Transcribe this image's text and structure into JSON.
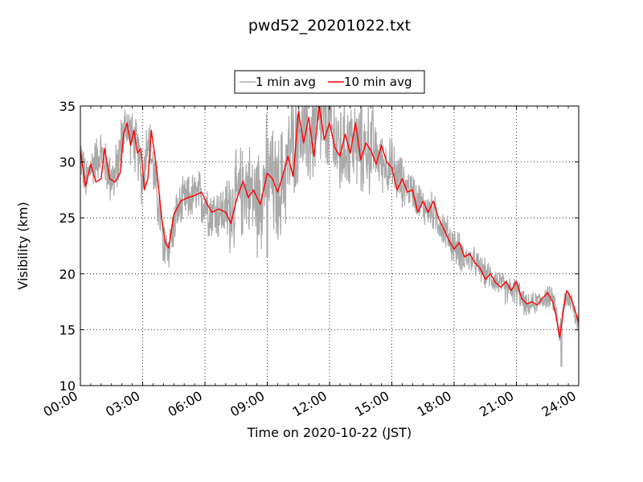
{
  "chart_data": {
    "type": "line",
    "title": "pwd52_20201022.txt",
    "xlabel": "Time on 2020-10-22 (JST)",
    "ylabel": "Visibility (km)",
    "xlim": [
      "00:00",
      "24:00"
    ],
    "ylim": [
      10,
      35
    ],
    "x_ticks": [
      "00:00",
      "03:00",
      "06:00",
      "09:00",
      "12:00",
      "15:00",
      "18:00",
      "21:00",
      "24:00"
    ],
    "y_ticks": [
      "10",
      "15",
      "20",
      "25",
      "30",
      "35"
    ],
    "grid": true,
    "legend_position": "top-center, above plot",
    "series": [
      {
        "name": "1 min avg",
        "color": "#a9a9a9",
        "noise_amplitude_km": [
          2.5,
          3,
          3,
          2.5,
          3,
          5,
          6,
          6,
          6,
          5,
          3,
          2,
          2,
          1.5,
          1.5,
          1.2,
          1.2
        ],
        "min_values": [
          {
            "x": "04:00",
            "y": 21.2
          },
          {
            "x": "09:00",
            "y": 21.5
          },
          {
            "x": "23:10",
            "y": 11.7
          }
        ],
        "points": [
          {
            "x": "00:00",
            "y": 31
          },
          {
            "x": "00:15",
            "y": 28
          },
          {
            "x": "00:30",
            "y": 29.5
          },
          {
            "x": "01:00",
            "y": 31
          },
          {
            "x": "01:20",
            "y": 29
          },
          {
            "x": "01:40",
            "y": 28.5
          },
          {
            "x": "02:00",
            "y": 32
          },
          {
            "x": "02:15",
            "y": 33.5
          },
          {
            "x": "02:30",
            "y": 32
          },
          {
            "x": "02:45",
            "y": 31
          },
          {
            "x": "03:00",
            "y": 28
          },
          {
            "x": "03:15",
            "y": 32.5
          },
          {
            "x": "03:35",
            "y": 28.5
          },
          {
            "x": "04:00",
            "y": 23
          },
          {
            "x": "04:15",
            "y": 22.3
          },
          {
            "x": "04:40",
            "y": 25.5
          },
          {
            "x": "05:00",
            "y": 26.5
          },
          {
            "x": "05:30",
            "y": 27
          },
          {
            "x": "06:00",
            "y": 26.5
          },
          {
            "x": "06:20",
            "y": 25.5
          },
          {
            "x": "07:00",
            "y": 25.5
          },
          {
            "x": "07:30",
            "y": 26.5
          },
          {
            "x": "08:00",
            "y": 28
          },
          {
            "x": "08:30",
            "y": 26.5
          },
          {
            "x": "09:00",
            "y": 29
          },
          {
            "x": "09:30",
            "y": 27
          },
          {
            "x": "10:00",
            "y": 30
          },
          {
            "x": "10:30",
            "y": 33.5
          },
          {
            "x": "11:00",
            "y": 32
          },
          {
            "x": "11:30",
            "y": 34
          },
          {
            "x": "12:00",
            "y": 33
          },
          {
            "x": "12:30",
            "y": 31
          },
          {
            "x": "13:00",
            "y": 32
          },
          {
            "x": "13:30",
            "y": 31
          },
          {
            "x": "14:00",
            "y": 31.5
          },
          {
            "x": "14:30",
            "y": 30
          },
          {
            "x": "15:00",
            "y": 29.5
          },
          {
            "x": "15:30",
            "y": 28
          },
          {
            "x": "16:00",
            "y": 27.5
          },
          {
            "x": "16:30",
            "y": 26
          },
          {
            "x": "17:00",
            "y": 25.5
          },
          {
            "x": "17:30",
            "y": 24
          },
          {
            "x": "18:00",
            "y": 22.5
          },
          {
            "x": "18:30",
            "y": 21.5
          },
          {
            "x": "19:00",
            "y": 21
          },
          {
            "x": "19:30",
            "y": 20
          },
          {
            "x": "20:00",
            "y": 19.5
          },
          {
            "x": "20:30",
            "y": 18.5
          },
          {
            "x": "21:00",
            "y": 18.5
          },
          {
            "x": "21:30",
            "y": 17
          },
          {
            "x": "22:00",
            "y": 17.5
          },
          {
            "x": "22:30",
            "y": 18
          },
          {
            "x": "22:50",
            "y": 17.5
          },
          {
            "x": "23:05",
            "y": 14.5
          },
          {
            "x": "23:20",
            "y": 18
          },
          {
            "x": "23:40",
            "y": 17.5
          },
          {
            "x": "24:00",
            "y": 15.5
          }
        ]
      },
      {
        "name": "10 min avg",
        "color": "#ff0000",
        "points": [
          {
            "x": "00:00",
            "y": 31
          },
          {
            "x": "00:15",
            "y": 27.8
          },
          {
            "x": "00:30",
            "y": 29.8
          },
          {
            "x": "00:45",
            "y": 28.2
          },
          {
            "x": "01:00",
            "y": 28.5
          },
          {
            "x": "01:10",
            "y": 31.2
          },
          {
            "x": "01:25",
            "y": 28.5
          },
          {
            "x": "01:40",
            "y": 28.2
          },
          {
            "x": "01:55",
            "y": 29
          },
          {
            "x": "02:05",
            "y": 32.5
          },
          {
            "x": "02:15",
            "y": 33.5
          },
          {
            "x": "02:25",
            "y": 31.5
          },
          {
            "x": "02:35",
            "y": 32.8
          },
          {
            "x": "02:45",
            "y": 30.8
          },
          {
            "x": "02:55",
            "y": 31.2
          },
          {
            "x": "03:05",
            "y": 27.5
          },
          {
            "x": "03:15",
            "y": 28.5
          },
          {
            "x": "03:25",
            "y": 32.8
          },
          {
            "x": "03:40",
            "y": 29.5
          },
          {
            "x": "03:55",
            "y": 25
          },
          {
            "x": "04:05",
            "y": 22.8
          },
          {
            "x": "04:15",
            "y": 22.3
          },
          {
            "x": "04:30",
            "y": 25.3
          },
          {
            "x": "04:50",
            "y": 26.5
          },
          {
            "x": "05:10",
            "y": 26.8
          },
          {
            "x": "05:30",
            "y": 27
          },
          {
            "x": "05:50",
            "y": 27.3
          },
          {
            "x": "06:05",
            "y": 26.3
          },
          {
            "x": "06:20",
            "y": 25.5
          },
          {
            "x": "06:40",
            "y": 25.8
          },
          {
            "x": "07:00",
            "y": 25.5
          },
          {
            "x": "07:15",
            "y": 24.5
          },
          {
            "x": "07:30",
            "y": 26.5
          },
          {
            "x": "07:50",
            "y": 28.3
          },
          {
            "x": "08:05",
            "y": 26.8
          },
          {
            "x": "08:20",
            "y": 27.5
          },
          {
            "x": "08:40",
            "y": 26.2
          },
          {
            "x": "09:00",
            "y": 29
          },
          {
            "x": "09:15",
            "y": 28.5
          },
          {
            "x": "09:30",
            "y": 27.3
          },
          {
            "x": "09:45",
            "y": 28.8
          },
          {
            "x": "10:00",
            "y": 30.5
          },
          {
            "x": "10:15",
            "y": 28.7
          },
          {
            "x": "10:30",
            "y": 34.5
          },
          {
            "x": "10:45",
            "y": 31.7
          },
          {
            "x": "11:00",
            "y": 34
          },
          {
            "x": "11:15",
            "y": 30.5
          },
          {
            "x": "11:30",
            "y": 35
          },
          {
            "x": "11:45",
            "y": 32
          },
          {
            "x": "12:00",
            "y": 33.5
          },
          {
            "x": "12:15",
            "y": 31.3
          },
          {
            "x": "12:30",
            "y": 30.5
          },
          {
            "x": "12:45",
            "y": 32.5
          },
          {
            "x": "13:00",
            "y": 30.8
          },
          {
            "x": "13:15",
            "y": 33.5
          },
          {
            "x": "13:30",
            "y": 30.2
          },
          {
            "x": "13:45",
            "y": 31.7
          },
          {
            "x": "14:00",
            "y": 31
          },
          {
            "x": "14:15",
            "y": 29.8
          },
          {
            "x": "14:30",
            "y": 31.5
          },
          {
            "x": "14:45",
            "y": 30
          },
          {
            "x": "15:00",
            "y": 29.5
          },
          {
            "x": "15:15",
            "y": 27.5
          },
          {
            "x": "15:30",
            "y": 28.5
          },
          {
            "x": "15:45",
            "y": 27.3
          },
          {
            "x": "16:00",
            "y": 27.5
          },
          {
            "x": "16:15",
            "y": 25.5
          },
          {
            "x": "16:30",
            "y": 26.5
          },
          {
            "x": "16:45",
            "y": 25.5
          },
          {
            "x": "17:00",
            "y": 26.5
          },
          {
            "x": "17:15",
            "y": 25
          },
          {
            "x": "17:30",
            "y": 24
          },
          {
            "x": "17:45",
            "y": 23
          },
          {
            "x": "18:00",
            "y": 22.2
          },
          {
            "x": "18:15",
            "y": 22.8
          },
          {
            "x": "18:30",
            "y": 21.5
          },
          {
            "x": "18:45",
            "y": 21.8
          },
          {
            "x": "19:00",
            "y": 21
          },
          {
            "x": "19:15",
            "y": 20.5
          },
          {
            "x": "19:30",
            "y": 19.5
          },
          {
            "x": "19:45",
            "y": 20
          },
          {
            "x": "20:00",
            "y": 19.2
          },
          {
            "x": "20:15",
            "y": 18.8
          },
          {
            "x": "20:30",
            "y": 19.3
          },
          {
            "x": "20:45",
            "y": 18.5
          },
          {
            "x": "21:00",
            "y": 19.3
          },
          {
            "x": "21:15",
            "y": 17.8
          },
          {
            "x": "21:30",
            "y": 17.3
          },
          {
            "x": "21:45",
            "y": 17.5
          },
          {
            "x": "22:00",
            "y": 17.2
          },
          {
            "x": "22:15",
            "y": 17.8
          },
          {
            "x": "22:30",
            "y": 18.3
          },
          {
            "x": "22:45",
            "y": 17.5
          },
          {
            "x": "22:55",
            "y": 16.2
          },
          {
            "x": "23:05",
            "y": 14.3
          },
          {
            "x": "23:15",
            "y": 16.5
          },
          {
            "x": "23:25",
            "y": 18.5
          },
          {
            "x": "23:35",
            "y": 18
          },
          {
            "x": "23:45",
            "y": 17.2
          },
          {
            "x": "24:00",
            "y": 15.6
          }
        ]
      }
    ]
  }
}
